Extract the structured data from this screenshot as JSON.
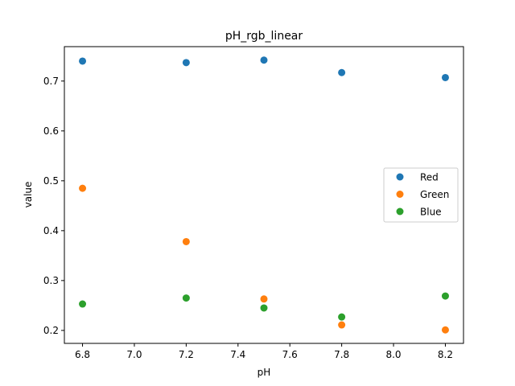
{
  "chart_data": {
    "type": "scatter",
    "title": "pH_rgb_linear",
    "xlabel": "pH",
    "ylabel": "value",
    "x": [
      6.8,
      7.2,
      7.5,
      7.8,
      8.2
    ],
    "xlim": [
      6.73,
      8.27
    ],
    "ylim": [
      0.174,
      0.769
    ],
    "xticks": [
      "6.8",
      "7.0",
      "7.2",
      "7.4",
      "7.6",
      "7.8",
      "8.0",
      "8.2"
    ],
    "yticks": [
      "0.2",
      "0.3",
      "0.4",
      "0.5",
      "0.6",
      "0.7"
    ],
    "grid": false,
    "legend_position": "center-right",
    "series": [
      {
        "name": "Red",
        "color": "#1f77b4",
        "values": [
          0.74,
          0.737,
          0.742,
          0.717,
          0.707
        ]
      },
      {
        "name": "Green",
        "color": "#ff7f0e",
        "values": [
          0.485,
          0.378,
          0.263,
          0.211,
          0.201
        ]
      },
      {
        "name": "Blue",
        "color": "#2ca02c",
        "values": [
          0.253,
          0.265,
          0.245,
          0.227,
          0.269
        ]
      }
    ]
  }
}
